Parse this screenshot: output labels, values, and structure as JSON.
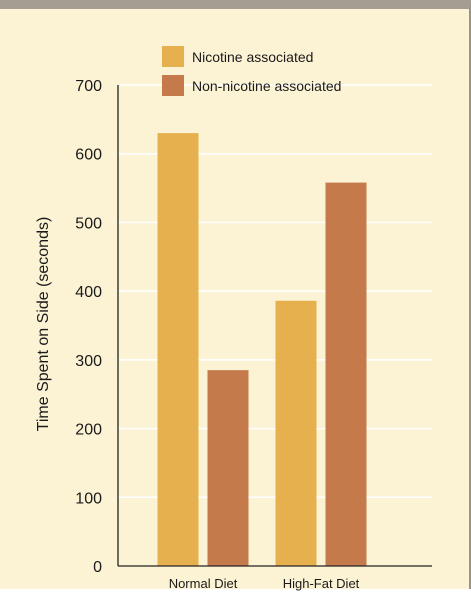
{
  "chart_data": {
    "type": "bar",
    "title": "",
    "xlabel": "",
    "ylabel": "Time Spent on Side (seconds)",
    "categories": [
      "Normal Diet",
      "High-Fat Diet"
    ],
    "series": [
      {
        "name": "Nicotine associated",
        "values": [
          630,
          386
        ],
        "color": "#e6b04e"
      },
      {
        "name": "Non-nicotine associated",
        "values": [
          285,
          558
        ],
        "color": "#c57a4c"
      }
    ],
    "ylim": [
      0,
      700
    ],
    "yticks": [
      "0",
      "100",
      "200",
      "300",
      "400",
      "500",
      "600",
      "700"
    ],
    "grid": true,
    "legend_position": "top"
  },
  "colors": {
    "background": "#fcf3d4",
    "gridline": "#ffffff",
    "axis": "#222222"
  }
}
